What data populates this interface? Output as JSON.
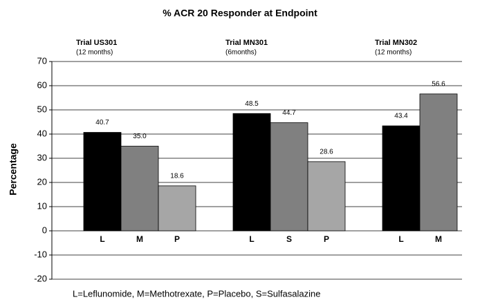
{
  "chart_data": {
    "type": "bar",
    "title": "% ACR 20 Responder at Endpoint",
    "y_label": "Percentage",
    "ylim": [
      -20,
      70
    ],
    "yticks": [
      -20,
      -10,
      0,
      10,
      20,
      30,
      40,
      50,
      60,
      70
    ],
    "grid": true,
    "groups": [
      {
        "name": "Trial US301",
        "period": "(12 months)",
        "categories": [
          "L",
          "M",
          "P"
        ],
        "values": [
          40.7,
          35.0,
          18.6
        ],
        "value_labels": [
          "40.7",
          "35.0",
          "18.6"
        ],
        "colors": [
          "#000000",
          "#808080",
          "#a6a6a6"
        ]
      },
      {
        "name": "Trial MN301",
        "period": "(6months)",
        "categories": [
          "L",
          "S",
          "P"
        ],
        "values": [
          48.5,
          44.7,
          28.6
        ],
        "value_labels": [
          "48.5",
          "44.7",
          "28.6"
        ],
        "colors": [
          "#000000",
          "#808080",
          "#a6a6a6"
        ]
      },
      {
        "name": "Trial MN302",
        "period": "(12 months)",
        "categories": [
          "L",
          "M"
        ],
        "values": [
          43.4,
          56.6
        ],
        "value_labels": [
          "43.4",
          "56.6"
        ],
        "colors": [
          "#000000",
          "#808080"
        ]
      }
    ],
    "footnote": "L=Leflunomide,  M=Methotrexate,  P=Placebo,  S=Sulfasalazine"
  }
}
